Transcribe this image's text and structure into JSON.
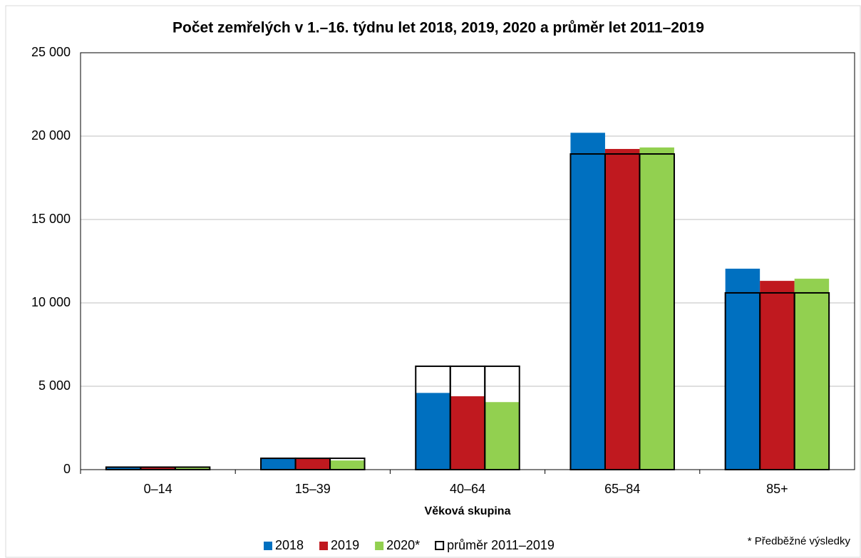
{
  "chart_data": {
    "type": "bar",
    "title": "Počet zemřelých v 1.–16. týdnu let 2018, 2019, 2020 a průměr let 2011–2019",
    "x_label": "Věková skupina",
    "categories": [
      "0–14",
      "15–39",
      "40–64",
      "65–84",
      "85+"
    ],
    "series": [
      {
        "name": "2018",
        "color": "#0070c0",
        "values": [
          150,
          680,
          4600,
          20200,
          12050
        ]
      },
      {
        "name": "2019",
        "color": "#c0191f",
        "values": [
          150,
          680,
          4400,
          19230,
          11320
        ]
      },
      {
        "name": "2020*",
        "color": "#92d050",
        "values": [
          120,
          550,
          4050,
          19320,
          11450
        ]
      }
    ],
    "average": {
      "name": "průměr 2011–2019",
      "color": "#000000",
      "values": [
        150,
        680,
        6200,
        18930,
        10600
      ]
    },
    "ylim": [
      0,
      25000
    ],
    "yticks": [
      0,
      {
        "value": 5000,
        "label": "5 000"
      },
      {
        "value": 10000,
        "label": "10 000"
      },
      {
        "value": 15000,
        "label": "15 000"
      },
      {
        "value": 20000,
        "label": "20 000"
      },
      {
        "value": 25000,
        "label": "25 000"
      }
    ],
    "grid": true,
    "note": "* Předběžné výsledky"
  }
}
